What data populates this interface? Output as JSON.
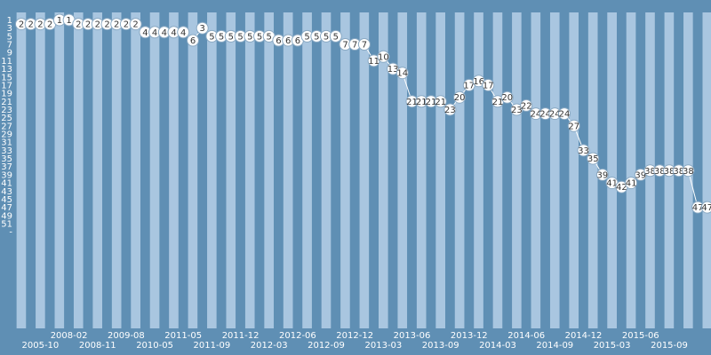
{
  "chart_data": {
    "type": "line",
    "title": "",
    "xlabel": "",
    "ylabel": "",
    "y_axis": {
      "inverted": true,
      "range": [
        1,
        53
      ],
      "ticks": [
        "1",
        "3",
        "5",
        "7",
        "9",
        "11",
        "13",
        "15",
        "17",
        "19",
        "21",
        "23",
        "25",
        "27",
        "29",
        "31",
        "33",
        "35",
        "37",
        "39",
        "41",
        "43",
        "45",
        "47",
        "49",
        "51",
        "-"
      ]
    },
    "x_tick_labels": [
      {
        "label": "2005-10",
        "index": 2
      },
      {
        "label": "2008-02",
        "index": 5
      },
      {
        "label": "2008-11",
        "index": 8
      },
      {
        "label": "2009-08",
        "index": 11
      },
      {
        "label": "2010-05",
        "index": 14
      },
      {
        "label": "2011-05",
        "index": 17
      },
      {
        "label": "2011-09",
        "index": 20
      },
      {
        "label": "2011-12",
        "index": 23
      },
      {
        "label": "2012-03",
        "index": 26
      },
      {
        "label": "2012-06",
        "index": 29
      },
      {
        "label": "2012-09",
        "index": 32
      },
      {
        "label": "2012-12",
        "index": 35
      },
      {
        "label": "2013-03",
        "index": 38
      },
      {
        "label": "2013-06",
        "index": 41
      },
      {
        "label": "2013-09",
        "index": 44
      },
      {
        "label": "2013-12",
        "index": 47
      },
      {
        "label": "2014-03",
        "index": 50
      },
      {
        "label": "2014-06",
        "index": 53
      },
      {
        "label": "2014-09",
        "index": 56
      },
      {
        "label": "2014-12",
        "index": 59
      },
      {
        "label": "2015-03",
        "index": 62
      },
      {
        "label": "2015-06",
        "index": 65
      },
      {
        "label": "2015-09",
        "index": 68
      }
    ],
    "series": [
      {
        "values": [
          2,
          2,
          2,
          2,
          1,
          1,
          2,
          2,
          2,
          2,
          2,
          2,
          2,
          4,
          4,
          4,
          4,
          4,
          6,
          3,
          5,
          5,
          5,
          5,
          5,
          5,
          5,
          6,
          6,
          6,
          5,
          5,
          5,
          5,
          7,
          7,
          7,
          11,
          10,
          13,
          14,
          21,
          21,
          21,
          21,
          23,
          20,
          17,
          16,
          17,
          21,
          20,
          23,
          22,
          24,
          24,
          24,
          24,
          27,
          33,
          35,
          39,
          41,
          42,
          41,
          39,
          38,
          38,
          38,
          38,
          38,
          47,
          47
        ]
      }
    ],
    "grid": true,
    "legend": "none",
    "colors": {
      "background": "#5f8fb4",
      "stripe_light": "#a9c6e0",
      "stripe_dark": "#5f8fb4",
      "line": "#ffffff",
      "marker_fill": "#ffffff",
      "marker_stroke": "#8aa9c3",
      "text": "#ffffff",
      "marker_text": "#333333"
    }
  }
}
